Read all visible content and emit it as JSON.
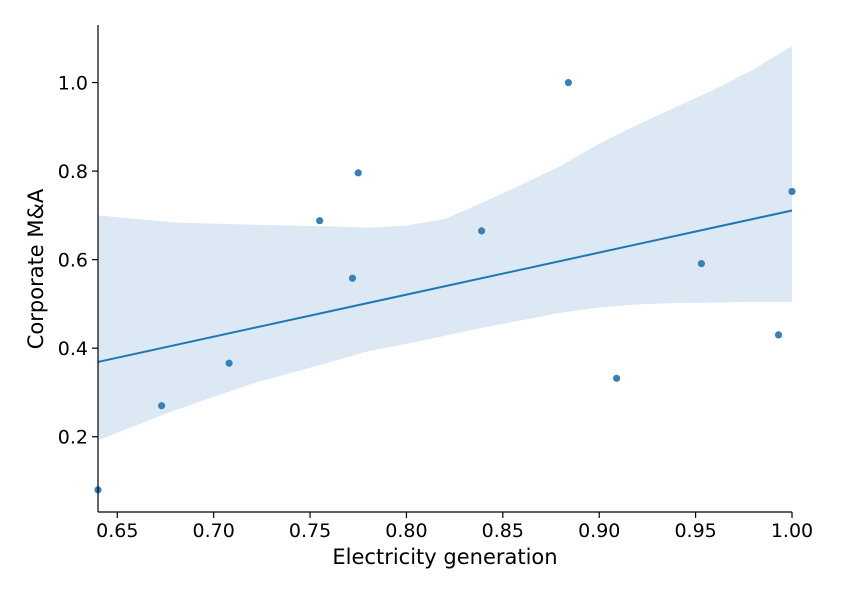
{
  "chart_data": {
    "type": "scatter",
    "title": "",
    "xlabel": "Electricity generation",
    "ylabel": "Corporate M&A",
    "xlim": [
      0.64,
      1.0
    ],
    "ylim": [
      0.03,
      1.13
    ],
    "xticks": [
      "0.65",
      "0.70",
      "0.75",
      "0.80",
      "0.85",
      "0.90",
      "0.95",
      "1.00"
    ],
    "yticks": [
      "0.2",
      "0.4",
      "0.6",
      "0.8",
      "1.0"
    ],
    "grid": false,
    "legend": "none",
    "point_color": "#3a7fb5",
    "line_color": "#1f77b4",
    "band_color": "#dce8f3",
    "points": [
      {
        "x": 0.64,
        "y": 0.08
      },
      {
        "x": 0.673,
        "y": 0.27
      },
      {
        "x": 0.708,
        "y": 0.366
      },
      {
        "x": 0.755,
        "y": 0.688
      },
      {
        "x": 0.772,
        "y": 0.558
      },
      {
        "x": 0.775,
        "y": 0.796
      },
      {
        "x": 0.839,
        "y": 0.665
      },
      {
        "x": 0.884,
        "y": 1.0
      },
      {
        "x": 0.909,
        "y": 0.332
      },
      {
        "x": 0.953,
        "y": 0.591
      },
      {
        "x": 0.993,
        "y": 0.43
      },
      {
        "x": 1.0,
        "y": 0.754
      }
    ],
    "regression": {
      "x": [
        0.64,
        1.0
      ],
      "y": [
        0.369,
        0.711
      ]
    },
    "confidence_band": {
      "x": [
        0.64,
        0.68,
        0.72,
        0.76,
        0.78,
        0.8,
        0.82,
        0.84,
        0.86,
        0.88,
        0.9,
        0.92,
        0.94,
        0.96,
        0.98,
        1.0
      ],
      "upper": [
        0.7,
        0.684,
        0.679,
        0.675,
        0.672,
        0.677,
        0.692,
        0.73,
        0.77,
        0.812,
        0.862,
        0.905,
        0.945,
        0.985,
        1.03,
        1.082
      ],
      "lower": [
        0.192,
        0.26,
        0.32,
        0.368,
        0.393,
        0.41,
        0.428,
        0.447,
        0.463,
        0.48,
        0.492,
        0.499,
        0.502,
        0.503,
        0.505,
        0.505
      ]
    }
  }
}
